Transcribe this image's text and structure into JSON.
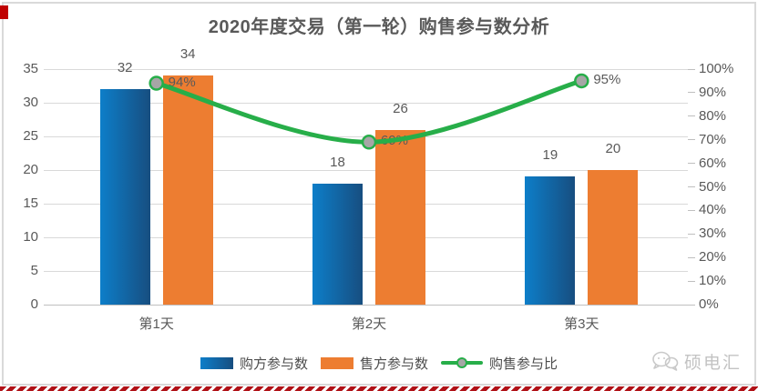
{
  "title": "2020年度交易（第一轮）购售参与数分析",
  "chart_data": {
    "type": "bar",
    "subtype": "combo-bar-line",
    "title": "2020年度交易（第一轮）购售参与数分析",
    "categories": [
      "第1天",
      "第2天",
      "第3天"
    ],
    "series": [
      {
        "name": "购方参与数",
        "type": "bar",
        "values": [
          32,
          18,
          19
        ],
        "color_start": "#0d7ec9",
        "color_end": "#174e80"
      },
      {
        "name": "售方参与数",
        "type": "bar",
        "values": [
          34,
          26,
          20
        ],
        "color": "#ED7D31"
      },
      {
        "name": "购售参与比",
        "type": "line",
        "values": [
          94,
          69,
          95
        ],
        "point_labels": [
          "94%",
          "69%",
          "95%"
        ],
        "color": "#27AE49",
        "marker_fill": "#A6A6A6"
      }
    ],
    "left_axis": {
      "min": 0,
      "max": 35,
      "step": 5,
      "ticks": [
        "0",
        "5",
        "10",
        "15",
        "20",
        "25",
        "30",
        "35"
      ]
    },
    "right_axis": {
      "min": 0,
      "max": 100,
      "step": 10,
      "ticks": [
        "0%",
        "10%",
        "20%",
        "30%",
        "40%",
        "50%",
        "60%",
        "70%",
        "80%",
        "90%",
        "100%"
      ]
    },
    "xlabel": "",
    "ylabel": "",
    "grid": true,
    "legend_position": "bottom"
  },
  "watermark": {
    "brand": "硕电汇",
    "icon": "chat-bubbles-icon"
  },
  "colors": {
    "title_text": "#595959",
    "axis_text": "#595959",
    "gridline": "#D9D9D9",
    "axis_line": "#BFBFBF",
    "card_border": "#D9D9D9",
    "accent_red": "#C00000",
    "stripe_red": "#B01117"
  }
}
